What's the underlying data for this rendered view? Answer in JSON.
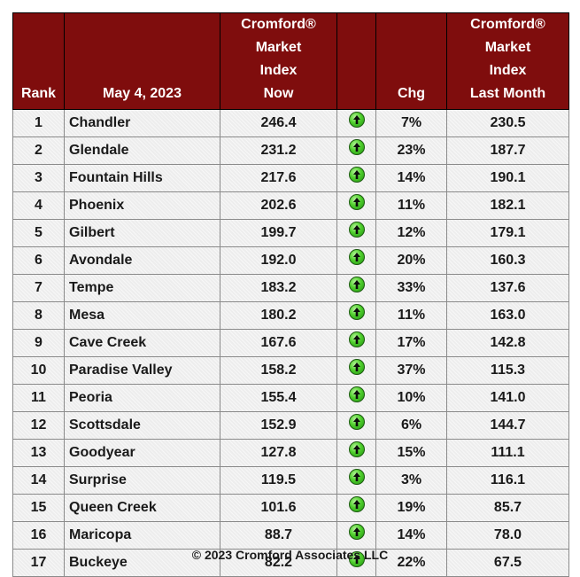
{
  "header": {
    "rank": "Rank",
    "date": "May 4, 2023",
    "now": [
      "Cromford®",
      "Market",
      "Index",
      "Now"
    ],
    "chg": "Chg",
    "last_month": [
      "Cromford®",
      "Market",
      "Index",
      "Last Month"
    ]
  },
  "rows": [
    {
      "rank": "1",
      "city": "Chandler",
      "now": "246.4",
      "chg": "7%",
      "last": "230.5"
    },
    {
      "rank": "2",
      "city": "Glendale",
      "now": "231.2",
      "chg": "23%",
      "last": "187.7"
    },
    {
      "rank": "3",
      "city": "Fountain Hills",
      "now": "217.6",
      "chg": "14%",
      "last": "190.1"
    },
    {
      "rank": "4",
      "city": "Phoenix",
      "now": "202.6",
      "chg": "11%",
      "last": "182.1"
    },
    {
      "rank": "5",
      "city": "Gilbert",
      "now": "199.7",
      "chg": "12%",
      "last": "179.1"
    },
    {
      "rank": "6",
      "city": "Avondale",
      "now": "192.0",
      "chg": "20%",
      "last": "160.3"
    },
    {
      "rank": "7",
      "city": "Tempe",
      "now": "183.2",
      "chg": "33%",
      "last": "137.6"
    },
    {
      "rank": "8",
      "city": "Mesa",
      "now": "180.2",
      "chg": "11%",
      "last": "163.0"
    },
    {
      "rank": "9",
      "city": "Cave Creek",
      "now": "167.6",
      "chg": "17%",
      "last": "142.8"
    },
    {
      "rank": "10",
      "city": "Paradise Valley",
      "now": "158.2",
      "chg": "37%",
      "last": "115.3"
    },
    {
      "rank": "11",
      "city": "Peoria",
      "now": "155.4",
      "chg": "10%",
      "last": "141.0"
    },
    {
      "rank": "12",
      "city": "Scottsdale",
      "now": "152.9",
      "chg": "6%",
      "last": "144.7"
    },
    {
      "rank": "13",
      "city": "Goodyear",
      "now": "127.8",
      "chg": "15%",
      "last": "111.1"
    },
    {
      "rank": "14",
      "city": "Surprise",
      "now": "119.5",
      "chg": "3%",
      "last": "116.1"
    },
    {
      "rank": "15",
      "city": "Queen Creek",
      "now": "101.6",
      "chg": "19%",
      "last": "85.7"
    },
    {
      "rank": "16",
      "city": "Maricopa",
      "now": "88.7",
      "chg": "14%",
      "last": "78.0"
    },
    {
      "rank": "17",
      "city": "Buckeye",
      "now": "82.2",
      "chg": "22%",
      "last": "67.5"
    }
  ],
  "trend_icon": "green-up-arrow-icon",
  "colors": {
    "header_bg": "#7f0d0d",
    "header_text": "#ffffff",
    "arrow_green": "#3cbf1e"
  },
  "footer": "© 2023 Cromford Associates LLC"
}
